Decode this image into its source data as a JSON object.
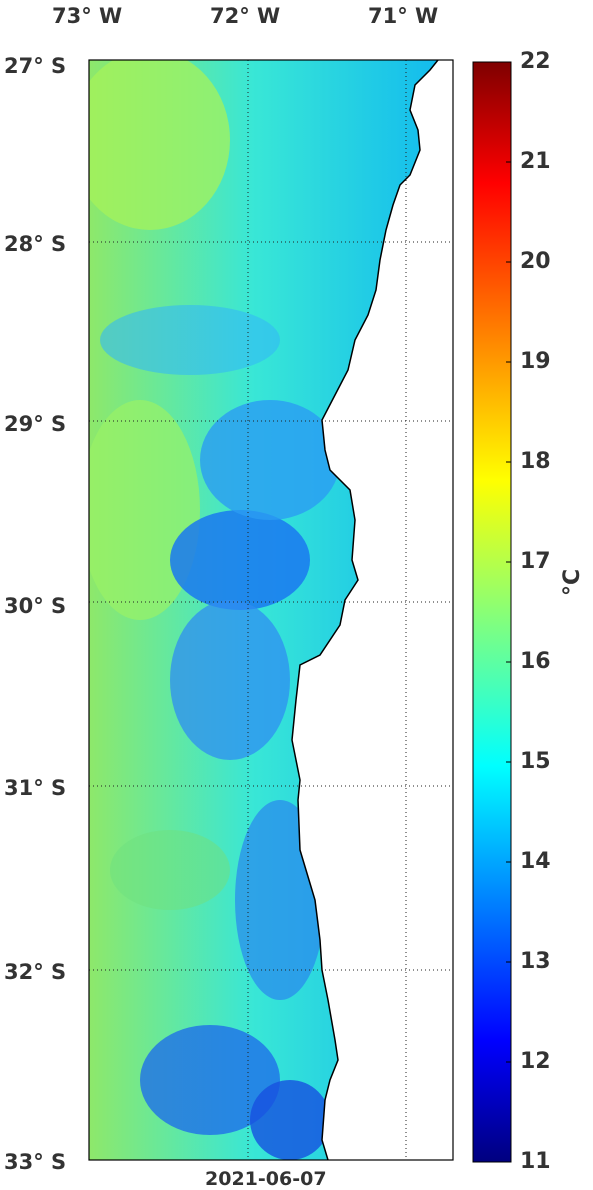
{
  "map": {
    "lon_labels": [
      "73° W",
      "72° W",
      "71° W"
    ],
    "lat_labels": [
      "27° S",
      "28° S",
      "29° S",
      "30° S",
      "31° S",
      "32° S",
      "33° S"
    ],
    "date": "2021-06-07"
  },
  "colorbar": {
    "ticks": [
      "22",
      "21",
      "20",
      "19",
      "18",
      "17",
      "16",
      "15",
      "14",
      "13",
      "12",
      "11"
    ],
    "unit": "°C",
    "min": 11,
    "max": 22
  }
}
